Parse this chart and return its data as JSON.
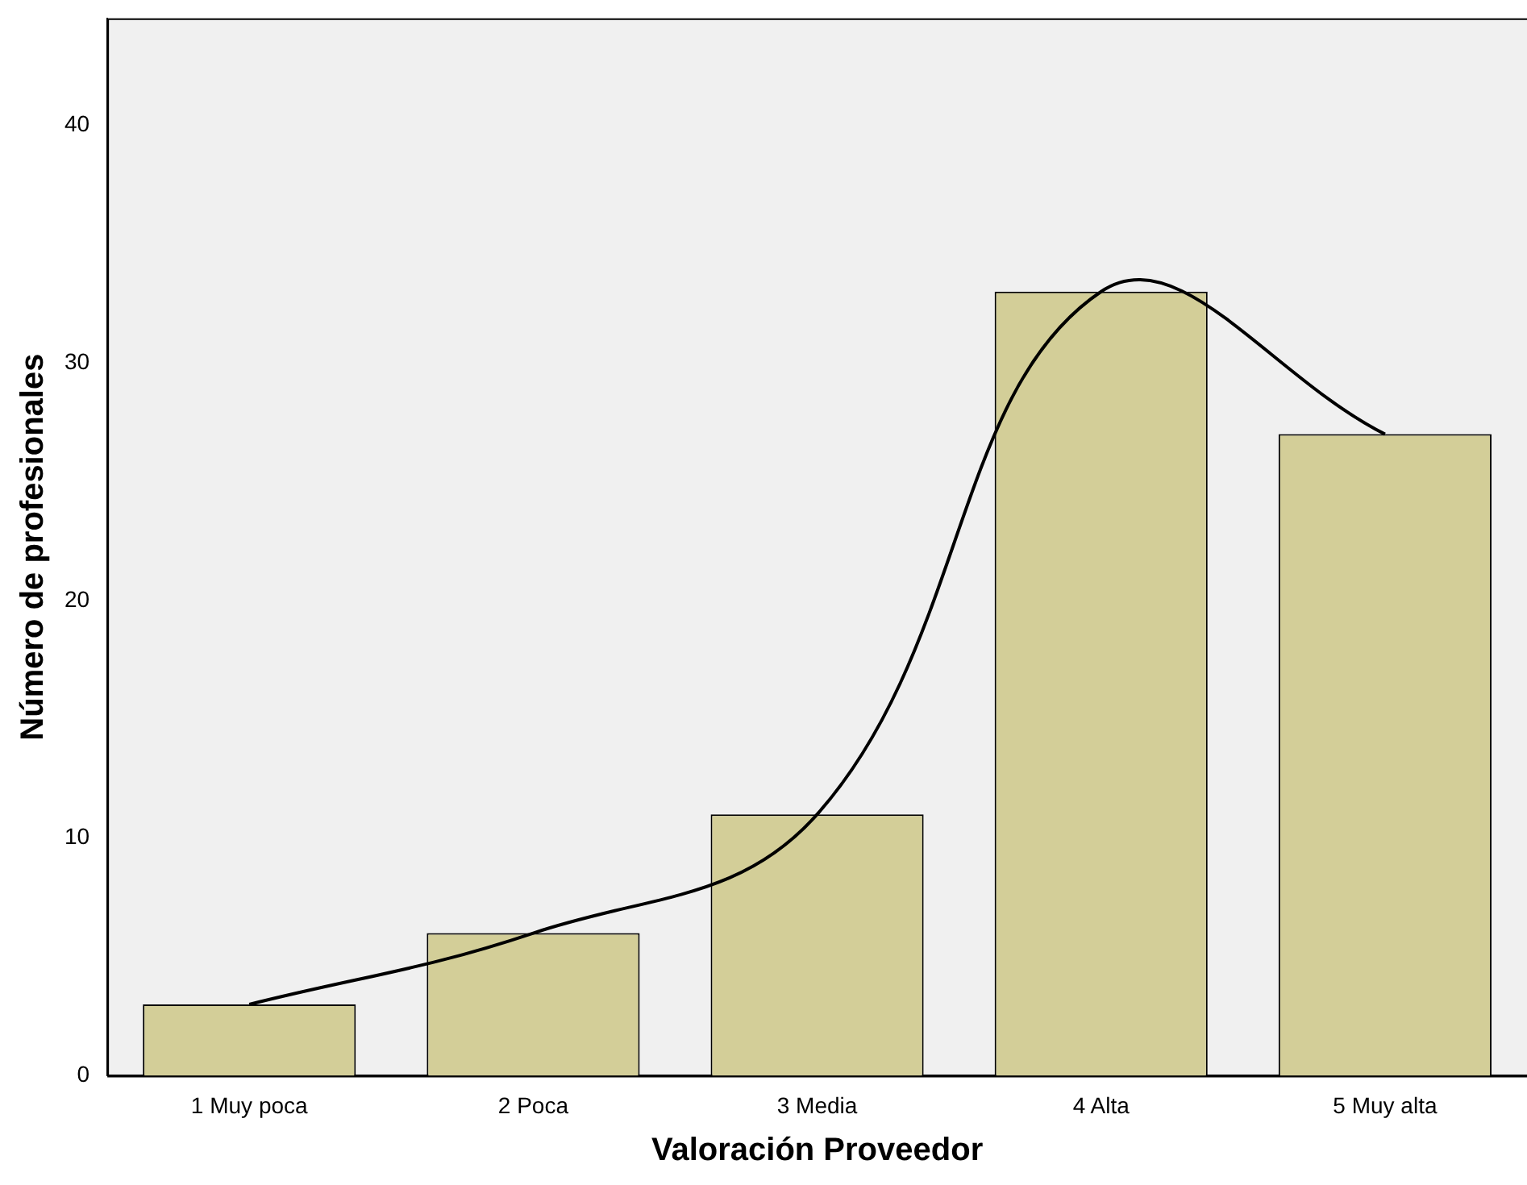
{
  "chart_data": {
    "type": "bar",
    "xlabel": "Valoración Proveedor",
    "ylabel": "Número de profesionales",
    "categories": [
      "1 Muy poca",
      "2 Poca",
      "3 Media",
      "4 Alta",
      "5 Muy alta"
    ],
    "series": [
      {
        "color": "#d3ce98",
        "values": [
          3,
          6,
          11,
          33,
          27
        ]
      },
      {
        "type": "line",
        "color": "#000000",
        "marker": "none",
        "values": [
          3,
          6,
          11,
          33,
          27
        ]
      }
    ],
    "ylim": [
      0,
      44.5
    ],
    "yticks": [
      0,
      10,
      20,
      30,
      40
    ],
    "grid": false,
    "legend": false
  }
}
